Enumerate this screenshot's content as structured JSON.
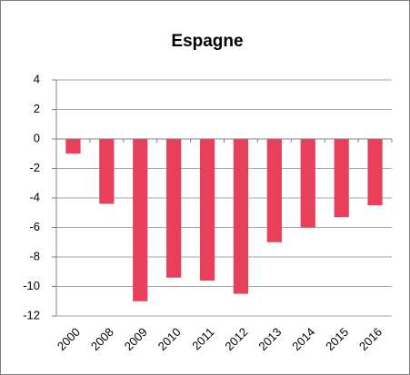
{
  "chart_data": {
    "type": "bar",
    "title": "Espagne",
    "categories": [
      "2000",
      "2008",
      "2009",
      "2010",
      "2011",
      "2012",
      "2013",
      "2014",
      "2015",
      "2016"
    ],
    "values": [
      -1.0,
      -4.4,
      -11.0,
      -9.4,
      -9.6,
      -10.5,
      -7.0,
      -6.0,
      -5.3,
      -4.5
    ],
    "color": "#e8405a",
    "ylim": [
      -12,
      4
    ],
    "yticks": [
      -12,
      -10,
      -8,
      -6,
      -4,
      -2,
      0,
      2,
      4
    ],
    "grid": true
  }
}
